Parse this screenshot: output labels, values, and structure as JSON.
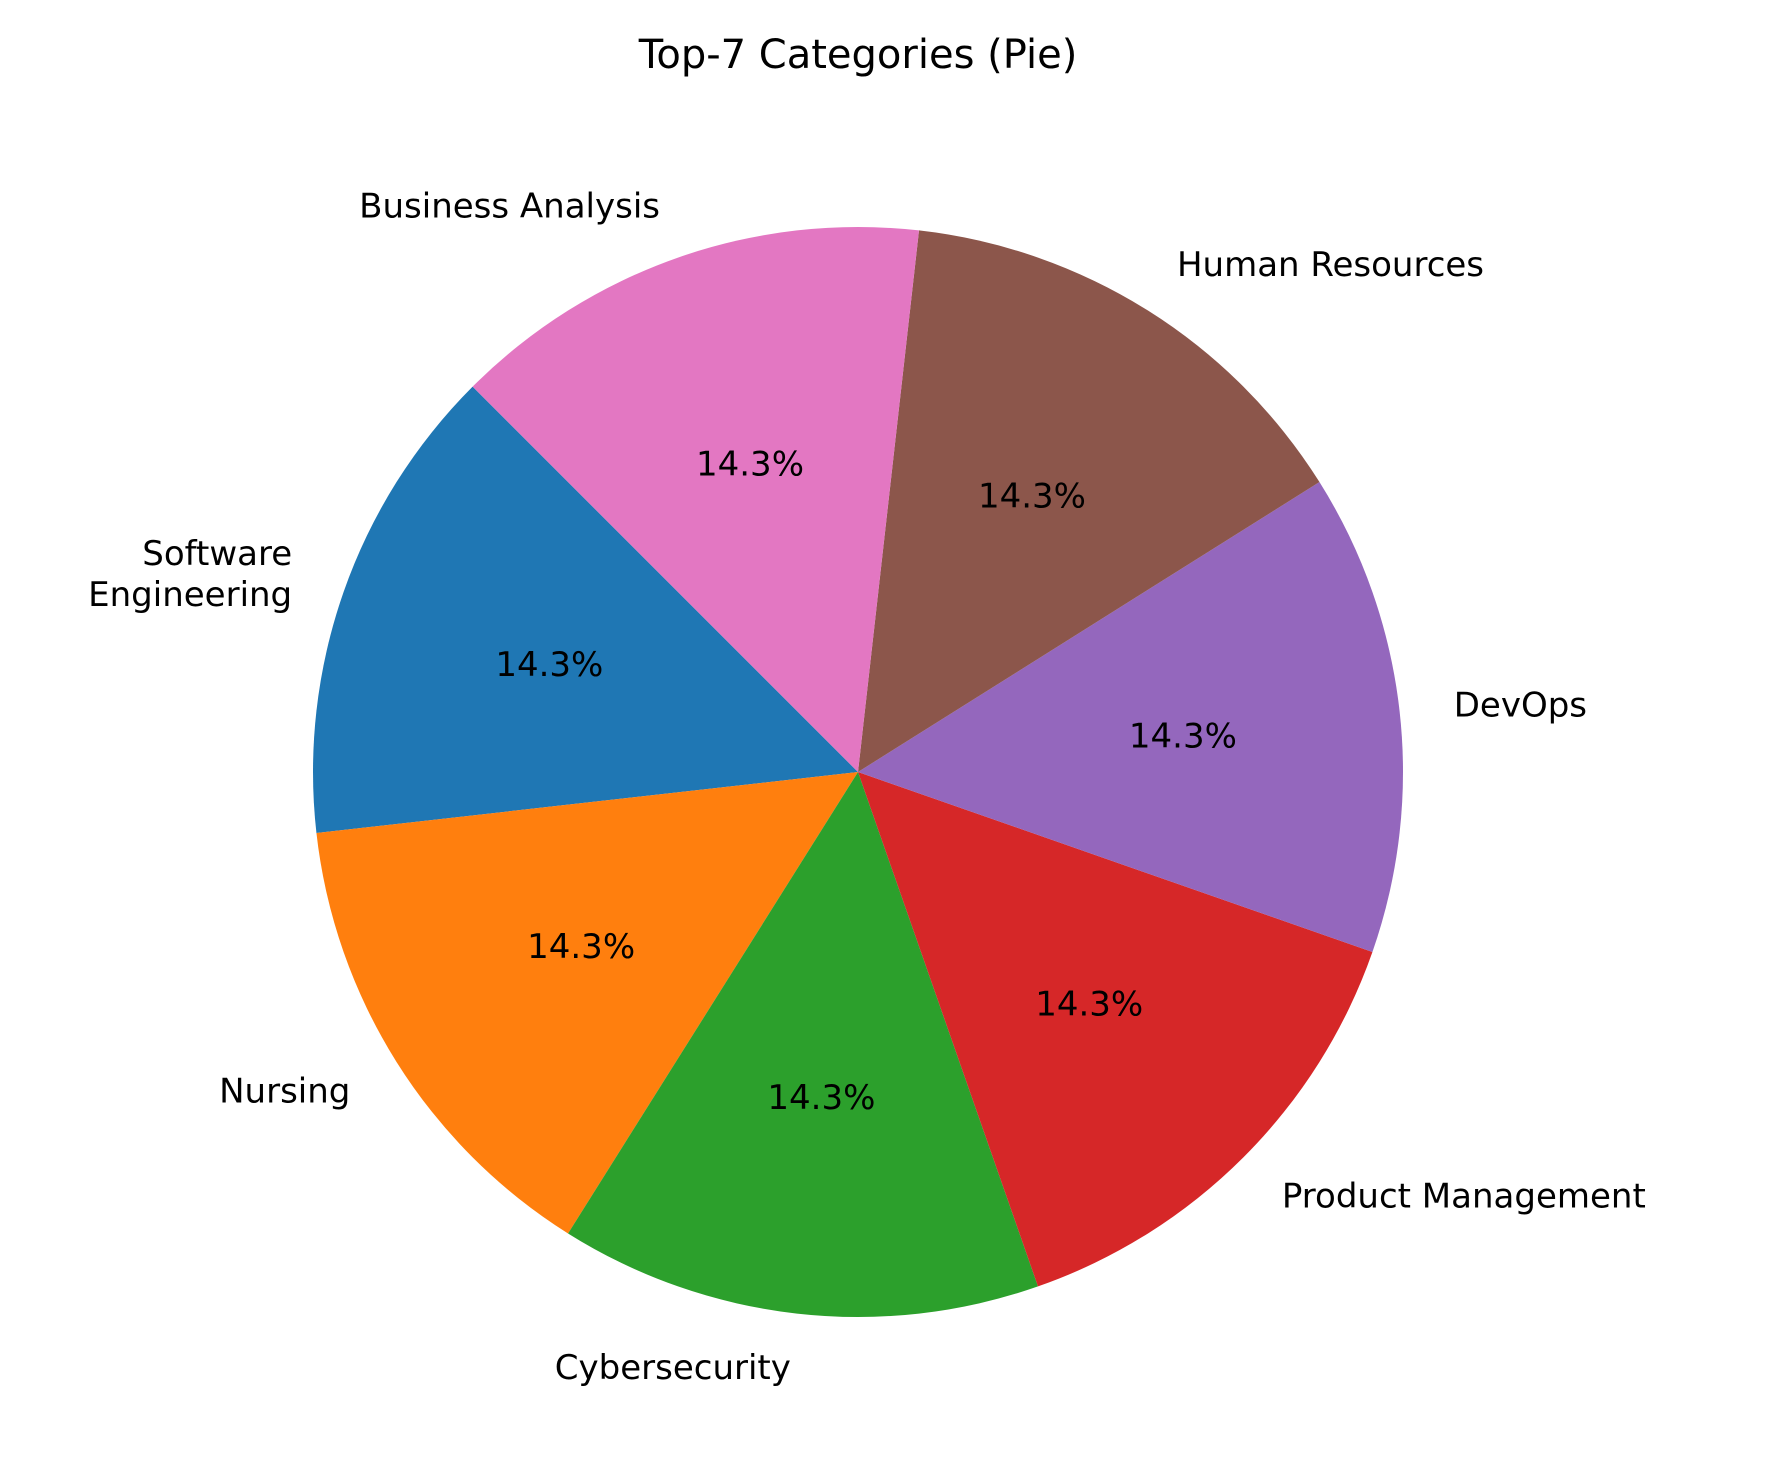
{
  "chart_data": {
    "type": "pie",
    "title": "Top-7 Categories (Pie)",
    "slices": [
      {
        "label": "Software\nEngineering",
        "value": 14.3,
        "pct_label": "14.3%",
        "color": "#1f77b4"
      },
      {
        "label": "Nursing",
        "value": 14.3,
        "pct_label": "14.3%",
        "color": "#ff7f0e"
      },
      {
        "label": "Cybersecurity",
        "value": 14.3,
        "pct_label": "14.3%",
        "color": "#2ca02c"
      },
      {
        "label": "Product Management",
        "value": 14.3,
        "pct_label": "14.3%",
        "color": "#d62728"
      },
      {
        "label": "DevOps",
        "value": 14.3,
        "pct_label": "14.3%",
        "color": "#9467bd"
      },
      {
        "label": "Human Resources",
        "value": 14.3,
        "pct_label": "14.3%",
        "color": "#8c564b"
      },
      {
        "label": "Business Analysis",
        "value": 14.3,
        "pct_label": "14.3%",
        "color": "#e377c2"
      }
    ],
    "start_angle_deg": 135,
    "direction": "counterclockwise",
    "legend": "none"
  }
}
